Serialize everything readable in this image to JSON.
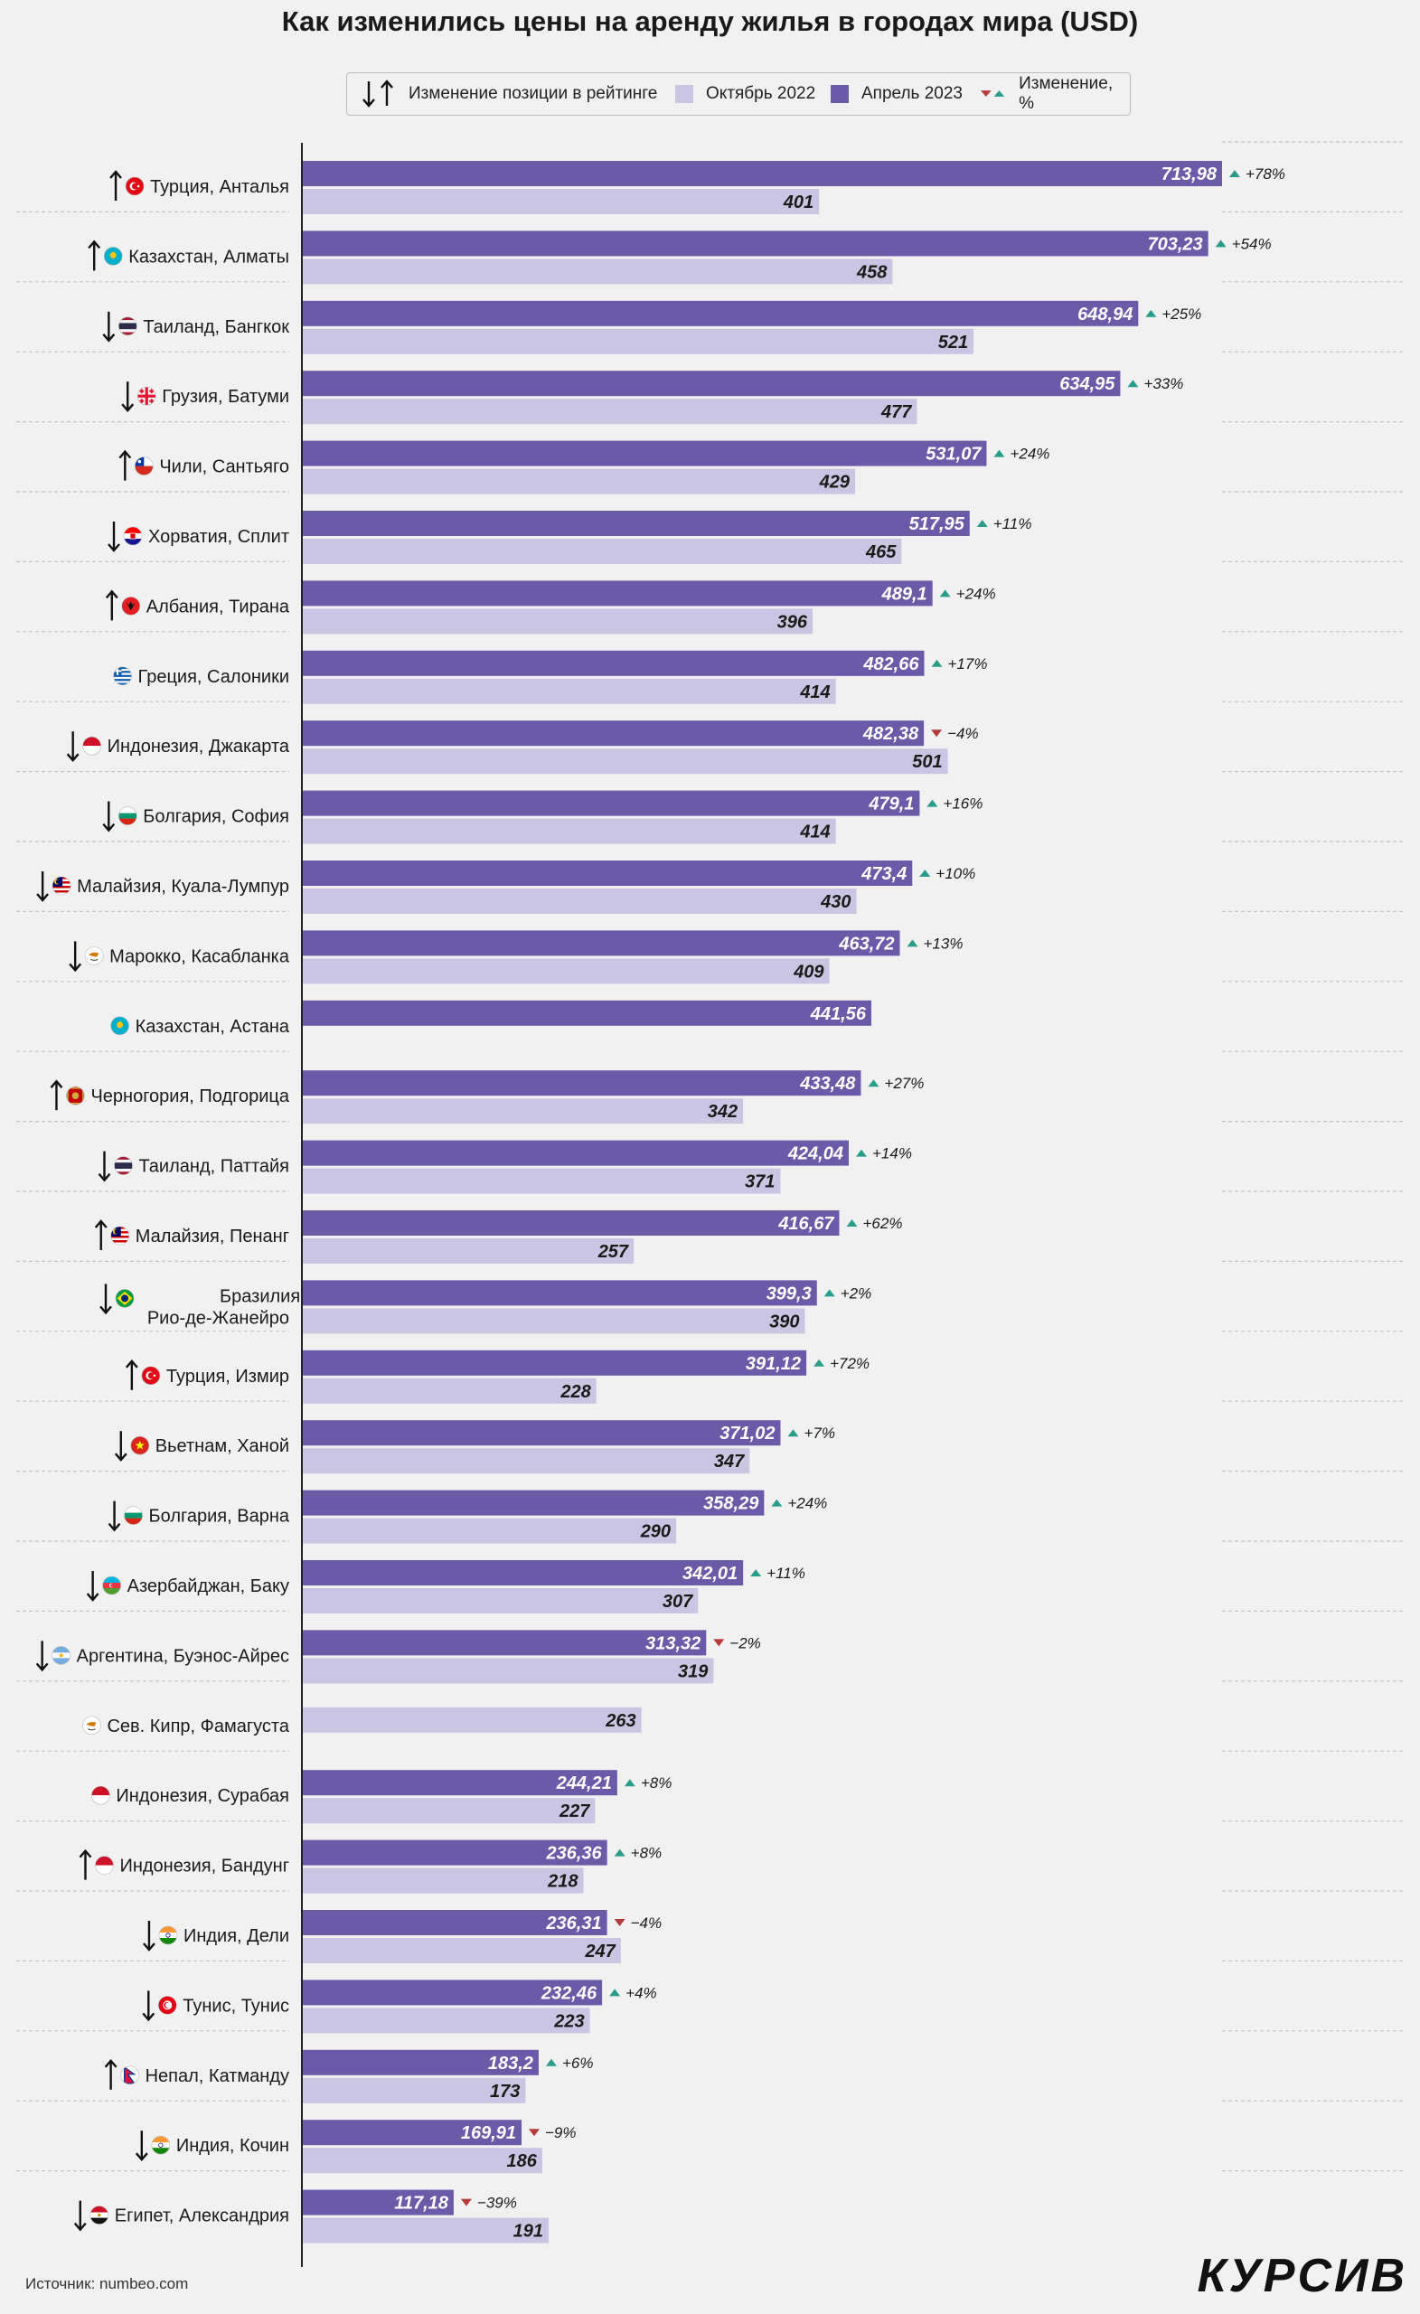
{
  "title": "Как изменились цены на аренду жилья в городах мира (USD)",
  "legend": {
    "rank_change": "Изменение позиции в рейтинге",
    "oct2022": "Октябрь 2022",
    "apr2023": "Апрель 2023",
    "change_pct": "Изменение, %"
  },
  "colors": {
    "apr2023": "#6a5aa8",
    "oct2022": "#cac5e3",
    "up": "#2a9d8a",
    "down": "#b53a3a"
  },
  "source": "Источник: numbeo.com",
  "brand": "КУРСИВ",
  "chart_data": {
    "type": "bar",
    "title": "Как изменились цены на аренду жилья в городах мира (USD)",
    "orientation": "horizontal",
    "xlim": [
      0,
      714
    ],
    "grid": false,
    "legend_position": "top",
    "categories": [
      {
        "label": "Турция, Анталья",
        "flag": "turkey",
        "rank": "up",
        "apr": 713.98,
        "apr_label": "713,98",
        "oct": 401,
        "oct_label": "401",
        "pct": "+78%",
        "dir": "up"
      },
      {
        "label": "Казахстан, Алматы",
        "flag": "kazakhstan",
        "rank": "up",
        "apr": 703.23,
        "apr_label": "703,23",
        "oct": 458,
        "oct_label": "458",
        "pct": "+54%",
        "dir": "up"
      },
      {
        "label": "Таиланд, Бангкок",
        "flag": "thailand",
        "rank": "down",
        "apr": 648.94,
        "apr_label": "648,94",
        "oct": 521,
        "oct_label": "521",
        "pct": "+25%",
        "dir": "up"
      },
      {
        "label": "Грузия, Батуми",
        "flag": "georgia",
        "rank": "down",
        "apr": 634.95,
        "apr_label": "634,95",
        "oct": 477,
        "oct_label": "477",
        "pct": "+33%",
        "dir": "up"
      },
      {
        "label": "Чили, Сантьяго",
        "flag": "chile",
        "rank": "up",
        "apr": 531.07,
        "apr_label": "531,07",
        "oct": 429,
        "oct_label": "429",
        "pct": "+24%",
        "dir": "up"
      },
      {
        "label": "Хорватия, Сплит",
        "flag": "croatia",
        "rank": "down",
        "apr": 517.95,
        "apr_label": "517,95",
        "oct": 465,
        "oct_label": "465",
        "pct": "+11%",
        "dir": "up"
      },
      {
        "label": "Албания, Тирана",
        "flag": "albania",
        "rank": "up",
        "apr": 489.1,
        "apr_label": "489,1",
        "oct": 396,
        "oct_label": "396",
        "pct": "+24%",
        "dir": "up"
      },
      {
        "label": "Греция, Салоники",
        "flag": "greece",
        "rank": "none",
        "apr": 482.66,
        "apr_label": "482,66",
        "oct": 414,
        "oct_label": "414",
        "pct": "+17%",
        "dir": "up"
      },
      {
        "label": "Индонезия, Джакарта",
        "flag": "indonesia",
        "rank": "down",
        "apr": 482.38,
        "apr_label": "482,38",
        "oct": 501,
        "oct_label": "501",
        "pct": "−4%",
        "dir": "down"
      },
      {
        "label": "Болгария, София",
        "flag": "bulgaria",
        "rank": "down",
        "apr": 479.1,
        "apr_label": "479,1",
        "oct": 414,
        "oct_label": "414",
        "pct": "+16%",
        "dir": "up"
      },
      {
        "label": "Малайзия, Куала-Лумпур",
        "flag": "malaysia",
        "rank": "down",
        "apr": 473.4,
        "apr_label": "473,4",
        "oct": 430,
        "oct_label": "430",
        "pct": "+10%",
        "dir": "up"
      },
      {
        "label": "Марокко, Касабланка",
        "flag": "cyprus",
        "rank": "down",
        "apr": 463.72,
        "apr_label": "463,72",
        "oct": 409,
        "oct_label": "409",
        "pct": "+13%",
        "dir": "up"
      },
      {
        "label": "Казахстан, Астана",
        "flag": "kazakhstan",
        "rank": "none",
        "apr": 441.56,
        "apr_label": "441,56",
        "oct": null,
        "oct_label": "",
        "pct": "",
        "dir": "none"
      },
      {
        "label": "Черногория, Подгорица",
        "flag": "montenegro",
        "rank": "up",
        "apr": 433.48,
        "apr_label": "433,48",
        "oct": 342,
        "oct_label": "342",
        "pct": "+27%",
        "dir": "up"
      },
      {
        "label": "Таиланд, Паттайя",
        "flag": "thailand",
        "rank": "down",
        "apr": 424.04,
        "apr_label": "424,04",
        "oct": 371,
        "oct_label": "371",
        "pct": "+14%",
        "dir": "up"
      },
      {
        "label": "Малайзия, Пенанг",
        "flag": "malaysia",
        "rank": "up",
        "apr": 416.67,
        "apr_label": "416,67",
        "oct": 257,
        "oct_label": "257",
        "pct": "+62%",
        "dir": "up"
      },
      {
        "label": "Бразилия,",
        "label2": "Рио-де-Жанейро",
        "flag": "brazil",
        "rank": "down",
        "apr": 399.3,
        "apr_label": "399,3",
        "oct": 390,
        "oct_label": "390",
        "pct": "+2%",
        "dir": "up"
      },
      {
        "label": "Турция, Измир",
        "flag": "turkey",
        "rank": "up",
        "apr": 391.12,
        "apr_label": "391,12",
        "oct": 228,
        "oct_label": "228",
        "pct": "+72%",
        "dir": "up"
      },
      {
        "label": "Вьетнам, Ханой",
        "flag": "vietnam",
        "rank": "down",
        "apr": 371.02,
        "apr_label": "371,02",
        "oct": 347,
        "oct_label": "347",
        "pct": "+7%",
        "dir": "up"
      },
      {
        "label": "Болгария, Варна",
        "flag": "bulgaria",
        "rank": "down",
        "apr": 358.29,
        "apr_label": "358,29",
        "oct": 290,
        "oct_label": "290",
        "pct": "+24%",
        "dir": "up"
      },
      {
        "label": "Азербайджан, Баку",
        "flag": "azerbaijan",
        "rank": "down",
        "apr": 342.01,
        "apr_label": "342,01",
        "oct": 307,
        "oct_label": "307",
        "pct": "+11%",
        "dir": "up"
      },
      {
        "label": "Аргентина, Буэнос-Айрес",
        "flag": "argentina",
        "rank": "down",
        "apr": 313.32,
        "apr_label": "313,32",
        "oct": 319,
        "oct_label": "319",
        "pct": "−2%",
        "dir": "down"
      },
      {
        "label": "Сев. Кипр, Фамагуста",
        "flag": "cyprus",
        "rank": "none",
        "apr": null,
        "apr_label": "",
        "oct": 263,
        "oct_label": "263",
        "pct": "",
        "dir": "none"
      },
      {
        "label": "Индонезия, Сурабая",
        "flag": "indonesia",
        "rank": "none",
        "apr": 244.21,
        "apr_label": "244,21",
        "oct": 227,
        "oct_label": "227",
        "pct": "+8%",
        "dir": "up"
      },
      {
        "label": "Индонезия, Бандунг",
        "flag": "indonesia",
        "rank": "up",
        "apr": 236.36,
        "apr_label": "236,36",
        "oct": 218,
        "oct_label": "218",
        "pct": "+8%",
        "dir": "up"
      },
      {
        "label": "Индия, Дели",
        "flag": "india",
        "rank": "down",
        "apr": 236.31,
        "apr_label": "236,31",
        "oct": 247,
        "oct_label": "247",
        "pct": "−4%",
        "dir": "down"
      },
      {
        "label": "Тунис, Тунис",
        "flag": "tunisia",
        "rank": "down",
        "apr": 232.46,
        "apr_label": "232,46",
        "oct": 223,
        "oct_label": "223",
        "pct": "+4%",
        "dir": "up"
      },
      {
        "label": "Непал, Катманду",
        "flag": "nepal",
        "rank": "up",
        "apr": 183.2,
        "apr_label": "183,2",
        "oct": 173,
        "oct_label": "173",
        "pct": "+6%",
        "dir": "up"
      },
      {
        "label": "Индия, Кочин",
        "flag": "india",
        "rank": "down",
        "apr": 169.91,
        "apr_label": "169,91",
        "oct": 186,
        "oct_label": "186",
        "pct": "−9%",
        "dir": "down"
      },
      {
        "label": "Египет, Александрия",
        "flag": "egypt",
        "rank": "down",
        "apr": 117.18,
        "apr_label": "117,18",
        "oct": 191,
        "oct_label": "191",
        "pct": "−39%",
        "dir": "down"
      }
    ]
  }
}
